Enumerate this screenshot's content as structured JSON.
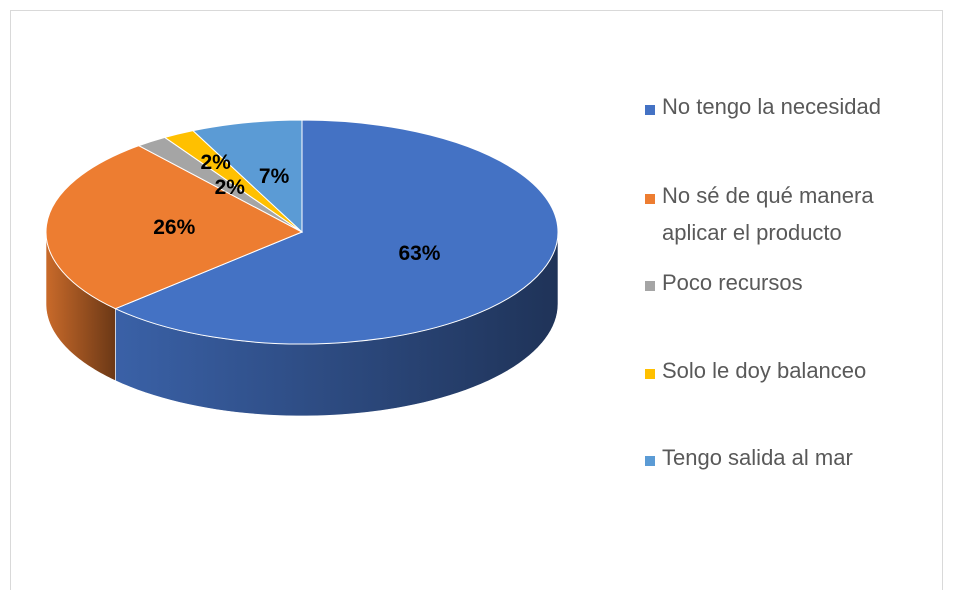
{
  "chart_data": {
    "type": "pie",
    "categories": [
      "No tengo la necesidad",
      "No sé de qué manera aplicar el producto",
      "Poco recursos",
      "Solo le doy balanceo",
      "Tengo salida al mar"
    ],
    "values": [
      63,
      26,
      2,
      2,
      7
    ],
    "value_labels": [
      "63%",
      "26%",
      "2%",
      "2%",
      "7%"
    ],
    "colors": [
      "#4472c4",
      "#ed7d31",
      "#a5a5a5",
      "#ffc000",
      "#5b9bd5"
    ],
    "legend": "right"
  }
}
